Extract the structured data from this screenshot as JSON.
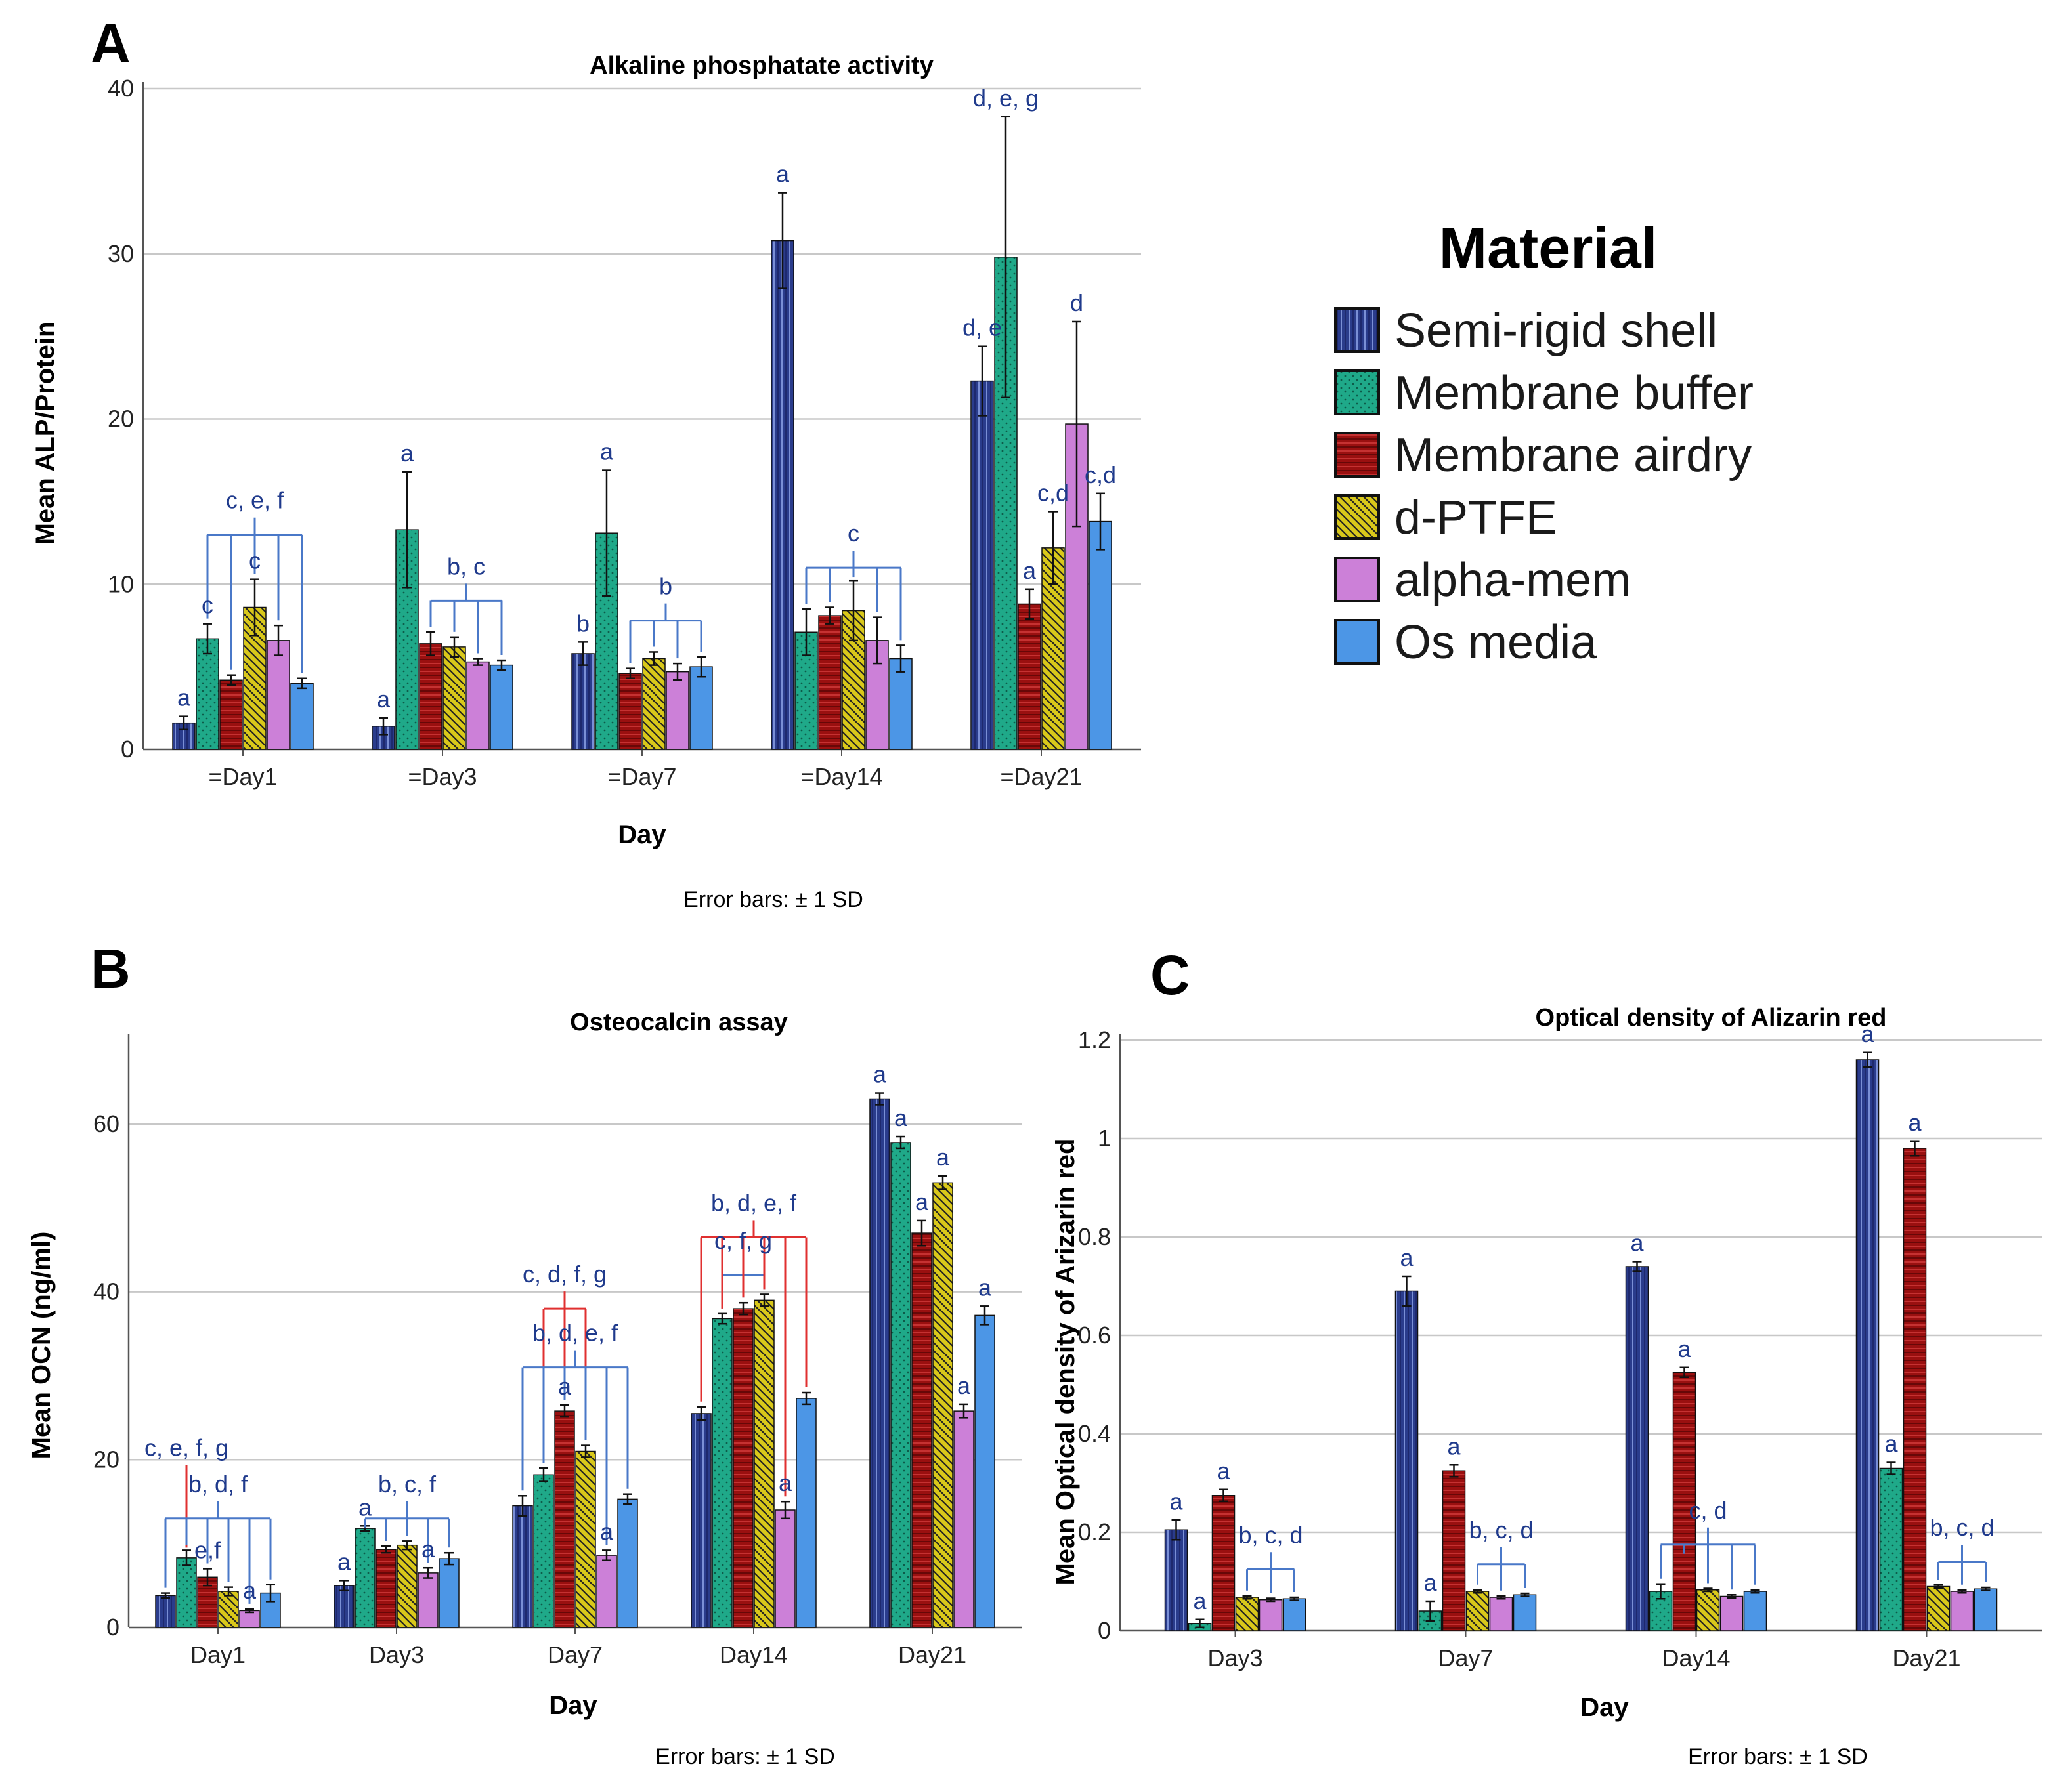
{
  "colors": {
    "Semi-rigid shell": "#2a3c8c",
    "Membrane buffer": "#1fa989",
    "Membrane airdry": "#9a1010",
    "d-PTFE": "#d9c81a",
    "alpha-mem": "#cc80d8",
    "Os media": "#4c96e6",
    "annotation": "#1f3a8c",
    "bracket_blue": "#4a78c8",
    "bracket_red": "#e03030"
  },
  "legend": {
    "title": "Material",
    "items": [
      "Semi-rigid shell",
      "Membrane buffer",
      "Membrane airdry",
      "d-PTFE",
      "alpha-mem",
      "Os media"
    ]
  },
  "chart_data": [
    {
      "panel": "A",
      "type": "bar",
      "title": "Alkaline phosphatate activity",
      "xlabel": "Day",
      "ylabel": "Mean ALP/Protein",
      "ylim": [
        0,
        40
      ],
      "yticks": [
        "0",
        "10",
        "20",
        "30",
        "40"
      ],
      "grid": true,
      "note": "Error bars: ± 1  SD",
      "categories": [
        "=Day1",
        "=Day3",
        "=Day7",
        "=Day14",
        "=Day21"
      ],
      "series": [
        {
          "name": "Semi-rigid shell",
          "values": [
            1.6,
            1.4,
            5.8,
            30.8,
            22.3
          ],
          "errors": [
            0.4,
            0.5,
            0.7,
            2.9,
            2.1
          ]
        },
        {
          "name": "Membrane buffer",
          "values": [
            6.7,
            13.3,
            13.1,
            7.1,
            29.8
          ],
          "errors": [
            0.9,
            3.5,
            3.8,
            1.4,
            8.5
          ]
        },
        {
          "name": "Membrane airdry",
          "values": [
            4.2,
            6.4,
            4.6,
            8.1,
            8.8
          ],
          "errors": [
            0.3,
            0.7,
            0.3,
            0.5,
            0.9
          ]
        },
        {
          "name": "d-PTFE",
          "values": [
            8.6,
            6.2,
            5.5,
            8.4,
            12.2
          ],
          "errors": [
            1.7,
            0.6,
            0.4,
            1.8,
            2.2
          ]
        },
        {
          "name": "alpha-mem",
          "values": [
            6.6,
            5.3,
            4.7,
            6.6,
            19.7
          ],
          "errors": [
            0.9,
            0.2,
            0.5,
            1.4,
            6.2
          ]
        },
        {
          "name": "Os media",
          "values": [
            4.0,
            5.1,
            5.0,
            5.5,
            13.8
          ],
          "errors": [
            0.3,
            0.3,
            0.6,
            0.8,
            1.7
          ]
        }
      ],
      "annotations": [
        {
          "text": "a",
          "cat": 0,
          "series": 0
        },
        {
          "text": "c",
          "cat": 0,
          "series": 1
        },
        {
          "text": "c",
          "cat": 0,
          "series": 3
        },
        {
          "text": "c, e, f",
          "cat": 0,
          "series": 3,
          "above_bracket": 0
        },
        {
          "text": "a",
          "cat": 1,
          "series": 0
        },
        {
          "text": "a",
          "cat": 1,
          "series": 1
        },
        {
          "text": "b, c",
          "cat": 1,
          "series": 3,
          "above_bracket": 1
        },
        {
          "text": "b",
          "cat": 2,
          "series": 0
        },
        {
          "text": "a",
          "cat": 2,
          "series": 1
        },
        {
          "text": "b",
          "cat": 2,
          "series": 3,
          "above_bracket": 2
        },
        {
          "text": "a",
          "cat": 3,
          "series": 0
        },
        {
          "text": "c",
          "cat": 3,
          "series": 3,
          "above_bracket": 3
        },
        {
          "text": "d, e",
          "cat": 4,
          "series": 0
        },
        {
          "text": "d, e, g",
          "cat": 4,
          "series": 1
        },
        {
          "text": "a",
          "cat": 4,
          "series": 2
        },
        {
          "text": "c,d",
          "cat": 4,
          "series": 3
        },
        {
          "text": "d",
          "cat": 4,
          "series": 4
        },
        {
          "text": "c,d",
          "cat": 4,
          "series": 5
        }
      ],
      "brackets": [
        {
          "cat": 0,
          "from": 1,
          "to": 5,
          "y": 13.0,
          "color": "blue"
        },
        {
          "cat": 1,
          "from": 2,
          "to": 5,
          "y": 9.0,
          "color": "blue"
        },
        {
          "cat": 2,
          "from": 2,
          "to": 5,
          "y": 7.8,
          "color": "blue"
        },
        {
          "cat": 3,
          "from": 1,
          "to": 5,
          "y": 11.0,
          "color": "blue"
        }
      ]
    },
    {
      "panel": "B",
      "type": "bar",
      "title": "Osteocalcin assay",
      "xlabel": "Day",
      "ylabel": "Mean OCN (ng/ml)",
      "ylim": [
        0,
        70
      ],
      "yticks": [
        "0",
        "20",
        "40",
        "60"
      ],
      "grid": true,
      "note": "Error bars: ± 1  SD",
      "categories": [
        "Day1",
        "Day3",
        "Day7",
        "Day14",
        "Day21"
      ],
      "series": [
        {
          "name": "Semi-rigid shell",
          "values": [
            3.8,
            5.0,
            14.5,
            25.5,
            63.0
          ],
          "errors": [
            0.3,
            0.6,
            1.2,
            0.8,
            0.7
          ]
        },
        {
          "name": "Membrane buffer",
          "values": [
            8.3,
            11.8,
            18.2,
            36.8,
            57.8
          ],
          "errors": [
            0.9,
            0.3,
            0.8,
            0.6,
            0.7
          ]
        },
        {
          "name": "Membrane airdry",
          "values": [
            6.0,
            9.3,
            25.8,
            38.0,
            47.0
          ],
          "errors": [
            1.0,
            0.4,
            0.7,
            0.7,
            1.5
          ]
        },
        {
          "name": "d-PTFE",
          "values": [
            4.3,
            9.8,
            21.0,
            39.0,
            53.0
          ],
          "errors": [
            0.5,
            0.5,
            0.7,
            0.7,
            0.8
          ]
        },
        {
          "name": "alpha-mem",
          "values": [
            2.0,
            6.5,
            8.6,
            14.0,
            25.8
          ],
          "errors": [
            0.2,
            0.6,
            0.6,
            1.0,
            0.8
          ]
        },
        {
          "name": "Os media",
          "values": [
            4.1,
            8.2,
            15.3,
            27.3,
            37.2
          ],
          "errors": [
            1.0,
            0.7,
            0.6,
            0.7,
            1.1
          ]
        }
      ],
      "annotations": [
        {
          "text": "c, e, f, g",
          "cat": 0,
          "series": 1,
          "above_bracket": 0
        },
        {
          "text": "e,f",
          "cat": 0,
          "series": 2
        },
        {
          "text": "a",
          "cat": 0,
          "series": 4
        },
        {
          "text": "b, d, f",
          "cat": 0,
          "series": 4,
          "above_bracket": 1
        },
        {
          "text": "a",
          "cat": 1,
          "series": 0
        },
        {
          "text": "a",
          "cat": 1,
          "series": 1
        },
        {
          "text": "a",
          "cat": 1,
          "series": 4
        },
        {
          "text": "b, c, f",
          "cat": 1,
          "series": 3,
          "above_bracket": 2
        },
        {
          "text": "a",
          "cat": 2,
          "series": 2
        },
        {
          "text": "a",
          "cat": 2,
          "series": 4
        },
        {
          "text": "c, d, f, g",
          "cat": 2,
          "series": 2,
          "above_bracket": 3
        },
        {
          "text": "b, d, e, f",
          "cat": 2,
          "series": 4,
          "above_bracket": 4
        },
        {
          "text": "a",
          "cat": 3,
          "series": 4
        },
        {
          "text": "c, f, g",
          "cat": 3,
          "series": 2,
          "above_bracket": 5
        },
        {
          "text": "b, d, e, f",
          "cat": 3,
          "series": 3,
          "above_bracket": 6
        },
        {
          "text": "a",
          "cat": 4,
          "series": 0
        },
        {
          "text": "a",
          "cat": 4,
          "series": 1
        },
        {
          "text": "a",
          "cat": 4,
          "series": 2
        },
        {
          "text": "a",
          "cat": 4,
          "series": 3
        },
        {
          "text": "a",
          "cat": 4,
          "series": 4
        },
        {
          "text": "a",
          "cat": 4,
          "series": 5
        }
      ],
      "brackets": [
        {
          "cat": 0,
          "from": 1,
          "to": 1,
          "y": 17.0,
          "color": "red"
        },
        {
          "cat": 0,
          "from": 0,
          "to": 5,
          "y": 13.0,
          "color": "blue"
        },
        {
          "cat": 1,
          "from": 1,
          "to": 5,
          "y": 13.0,
          "color": "blue"
        },
        {
          "cat": 2,
          "from": 1,
          "to": 3,
          "y": 38.0,
          "color": "red"
        },
        {
          "cat": 2,
          "from": 0,
          "to": 5,
          "y": 31.0,
          "color": "blue"
        },
        {
          "cat": 3,
          "from": 1,
          "to": 3,
          "y": 42.0,
          "color": "blue"
        },
        {
          "cat": 3,
          "from": 0,
          "to": 5,
          "y": 46.5,
          "color": "red"
        }
      ]
    },
    {
      "panel": "C",
      "type": "bar",
      "title": "Optical density of Alizarin red",
      "xlabel": "Day",
      "ylabel": "Mean Optical density of Arizarin red",
      "ylim": [
        0,
        1.2
      ],
      "yticks": [
        "0",
        "0.2",
        "0.4",
        "0.6",
        "0.8",
        "1",
        "1.2"
      ],
      "grid": true,
      "note": "Error bars: ± 1  SD",
      "categories": [
        "Day3",
        "Day7",
        "Day14",
        "Day21"
      ],
      "series": [
        {
          "name": "Semi-rigid shell",
          "values": [
            0.205,
            0.69,
            0.74,
            1.16
          ],
          "errors": [
            0.02,
            0.03,
            0.01,
            0.015
          ]
        },
        {
          "name": "Membrane buffer",
          "values": [
            0.015,
            0.04,
            0.08,
            0.33
          ],
          "errors": [
            0.008,
            0.02,
            0.015,
            0.012
          ]
        },
        {
          "name": "Membrane airdry",
          "values": [
            0.275,
            0.325,
            0.525,
            0.98
          ],
          "errors": [
            0.012,
            0.012,
            0.01,
            0.015
          ]
        },
        {
          "name": "d-PTFE",
          "values": [
            0.068,
            0.08,
            0.083,
            0.09
          ],
          "errors": [
            0.003,
            0.003,
            0.003,
            0.003
          ]
        },
        {
          "name": "alpha-mem",
          "values": [
            0.063,
            0.068,
            0.07,
            0.08
          ],
          "errors": [
            0.003,
            0.003,
            0.003,
            0.003
          ]
        },
        {
          "name": "Os media",
          "values": [
            0.065,
            0.073,
            0.08,
            0.085
          ],
          "errors": [
            0.003,
            0.003,
            0.003,
            0.003
          ]
        }
      ],
      "annotations": [
        {
          "text": "a",
          "cat": 0,
          "series": 0
        },
        {
          "text": "a",
          "cat": 0,
          "series": 1
        },
        {
          "text": "a",
          "cat": 0,
          "series": 2
        },
        {
          "text": "b, c, d",
          "cat": 0,
          "series": 4,
          "above_bracket": 0
        },
        {
          "text": "a",
          "cat": 1,
          "series": 0
        },
        {
          "text": "a",
          "cat": 1,
          "series": 1
        },
        {
          "text": "a",
          "cat": 1,
          "series": 2
        },
        {
          "text": "b, c, d",
          "cat": 1,
          "series": 4,
          "above_bracket": 1
        },
        {
          "text": "a",
          "cat": 2,
          "series": 0
        },
        {
          "text": "a",
          "cat": 2,
          "series": 2
        },
        {
          "text": "c, d",
          "cat": 2,
          "series": 4,
          "above_bracket": 2
        },
        {
          "text": "a",
          "cat": 3,
          "series": 0
        },
        {
          "text": "a",
          "cat": 3,
          "series": 1
        },
        {
          "text": "a",
          "cat": 3,
          "series": 2
        },
        {
          "text": "b, c, d",
          "cat": 3,
          "series": 4,
          "above_bracket": 3
        }
      ],
      "brackets": [
        {
          "cat": 0,
          "from": 3,
          "to": 5,
          "y": 0.125,
          "color": "blue"
        },
        {
          "cat": 1,
          "from": 3,
          "to": 5,
          "y": 0.135,
          "color": "blue"
        },
        {
          "cat": 2,
          "from": 1,
          "to": 5,
          "y": 0.175,
          "color": "blue"
        },
        {
          "cat": 3,
          "from": 3,
          "to": 5,
          "y": 0.14,
          "color": "blue"
        }
      ]
    }
  ]
}
